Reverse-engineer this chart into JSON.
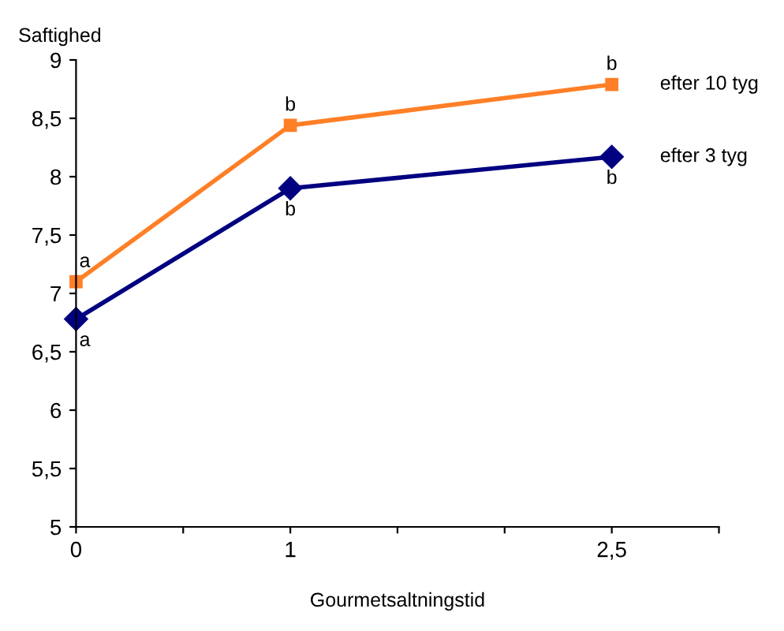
{
  "chart_data": {
    "type": "line",
    "ylabel": "Saftighed",
    "xlabel": "Gourmetsaltningstid",
    "x": [
      0,
      1,
      2.5
    ],
    "series": [
      {
        "name": "efter 10 tyg",
        "color": "#ff7f27",
        "marker": "square",
        "values": [
          7.1,
          8.44,
          8.79
        ]
      },
      {
        "name": "efter 3 tyg",
        "color": "#000080",
        "marker": "diamond",
        "values": [
          6.78,
          7.9,
          8.17
        ]
      }
    ],
    "xlim": [
      0,
      3
    ],
    "xticks": [
      0,
      {
        "value": 0.5,
        "label": null
      },
      1,
      {
        "value": 1.5,
        "label": null
      },
      {
        "value": 2,
        "label": null
      },
      {
        "value": 2.5,
        "label": "2,5"
      },
      {
        "value": 3,
        "label": null
      }
    ],
    "ylim": [
      5,
      9
    ],
    "yticks": [
      5,
      {
        "value": 5.5,
        "label": "5,5"
      },
      6,
      {
        "value": 6.5,
        "label": "6,5"
      },
      7,
      {
        "value": 7.5,
        "label": "7,5"
      },
      8,
      {
        "value": 8.5,
        "label": "8,5"
      },
      9
    ],
    "grid": false,
    "legend": false,
    "annotations": [
      {
        "text": "a",
        "x": 0,
        "y": 7.1
      },
      {
        "text": "b",
        "x": 1,
        "y": 8.44
      },
      {
        "text": "b",
        "x": 2.5,
        "y": 8.79
      },
      {
        "text": "a",
        "x": 0,
        "y": 6.78
      },
      {
        "text": "b",
        "x": 1,
        "y": 7.9
      },
      {
        "text": "b",
        "x": 2.5,
        "y": 8.17
      }
    ]
  }
}
